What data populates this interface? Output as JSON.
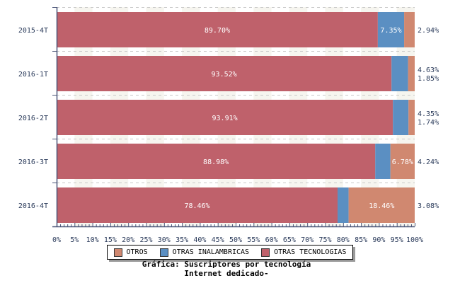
{
  "chart_data": {
    "type": "bar",
    "orientation": "horizontal",
    "stacked": true,
    "percent": true,
    "title": "Gráfica: Suscriptores por tecnología",
    "subtitle": "Internet dedicado-",
    "categories": [
      "2015-4T",
      "2016-1T",
      "2016-2T",
      "2016-3T",
      "2016-4T"
    ],
    "series": [
      {
        "name": "OTRAS TECNOLOGIAS",
        "color": "#bf616b",
        "values": [
          89.7,
          93.52,
          93.91,
          88.98,
          78.46
        ]
      },
      {
        "name": "OTRAS INALAMBRICAS",
        "color": "#5b8fc2",
        "values": [
          7.35,
          4.63,
          4.35,
          4.24,
          3.08
        ]
      },
      {
        "name": "OTROS",
        "color": "#d08870",
        "values": [
          2.94,
          1.85,
          1.74,
          6.78,
          18.46
        ]
      }
    ],
    "data_labels": [
      [
        "89.70%",
        "7.35%",
        "2.94%"
      ],
      [
        "93.52%",
        "4.63%",
        "1.85%"
      ],
      [
        "93.91%",
        "4.35%",
        "1.74%"
      ],
      [
        "88.98%",
        "4.24%",
        "6.78%"
      ],
      [
        "78.46%",
        "3.08%",
        "18.46%"
      ]
    ],
    "xlim": [
      0,
      100
    ],
    "xticks": [
      "0%",
      "5%",
      "10%",
      "15%",
      "20%",
      "25%",
      "30%",
      "35%",
      "40%",
      "45%",
      "50%",
      "55%",
      "60%",
      "65%",
      "70%",
      "75%",
      "80%",
      "85%",
      "90%",
      "95%",
      "100%"
    ],
    "grid": true,
    "legend_placement": "bottom",
    "legend": [
      "OTROS",
      "OTRAS INALAMBRICAS",
      "OTRAS TECNOLOGIAS"
    ]
  }
}
